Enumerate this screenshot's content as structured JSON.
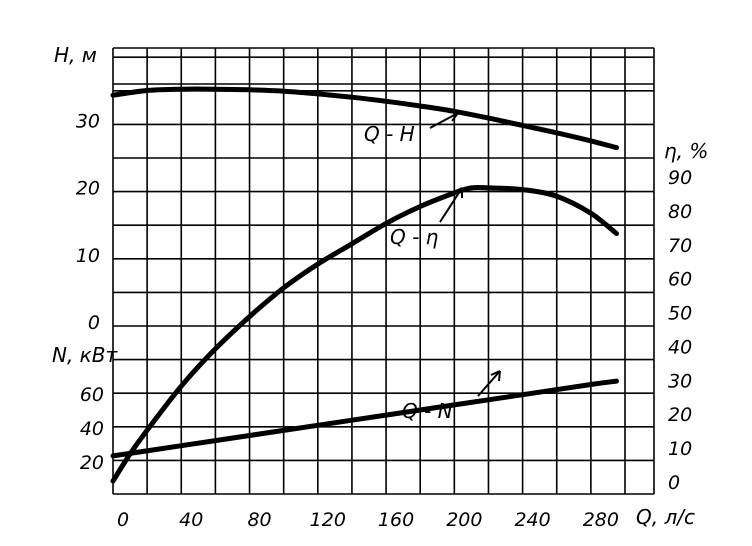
{
  "chart_data": {
    "type": "line",
    "title": "",
    "x_axis": {
      "label": "Q, л/с",
      "range": [
        0,
        300
      ],
      "ticks": [
        "0",
        "40",
        "80",
        "120",
        "160",
        "200",
        "240",
        "280"
      ]
    },
    "head_axis": {
      "label": "H, м",
      "range": [
        0,
        35
      ],
      "ticks": [
        "0",
        "10",
        "20",
        "30"
      ]
    },
    "power_axis": {
      "label": "N, кВт",
      "range": [
        0,
        90
      ],
      "ticks": [
        "20",
        "40",
        "60"
      ]
    },
    "efficiency_axis": {
      "label": "η, %",
      "range": [
        0,
        90
      ],
      "ticks": [
        "0",
        "10",
        "20",
        "30",
        "40",
        "50",
        "60",
        "70",
        "80",
        "90"
      ]
    },
    "grid": true,
    "series": [
      {
        "name": "Q - H",
        "axis": "head",
        "x": [
          0,
          20,
          40,
          60,
          80,
          100,
          120,
          140,
          160,
          180,
          200,
          220,
          240,
          260,
          280,
          295
        ],
        "y": [
          33.6,
          34.3,
          34.5,
          34.5,
          34.4,
          34.2,
          33.8,
          33.3,
          32.7,
          32.0,
          31.2,
          30.2,
          29.1,
          28.0,
          26.8,
          25.8
        ]
      },
      {
        "name": "Q - η",
        "axis": "efficiency",
        "x": [
          0,
          10,
          20,
          40,
          60,
          80,
          100,
          120,
          140,
          160,
          180,
          200,
          210,
          220,
          240,
          260,
          280,
          295
        ],
        "y": [
          0,
          8,
          15,
          28,
          39,
          48.5,
          57,
          64,
          70,
          76,
          81,
          85,
          86.5,
          86.5,
          86,
          84,
          79,
          73
        ]
      },
      {
        "name": "Q - N",
        "axis": "power",
        "x": [
          0,
          40,
          80,
          120,
          160,
          200,
          240,
          280,
          295
        ],
        "y": [
          23,
          29,
          35,
          41,
          47,
          53,
          59,
          65,
          67
        ]
      }
    ]
  },
  "curve_labels": {
    "qh": "Q - H",
    "qeta": "Q - η",
    "qn": "Q - N"
  },
  "axis_labels": {
    "head": "H, м",
    "power": "N, кВт",
    "efficiency": "η, %",
    "flow": "Q, л/с"
  }
}
